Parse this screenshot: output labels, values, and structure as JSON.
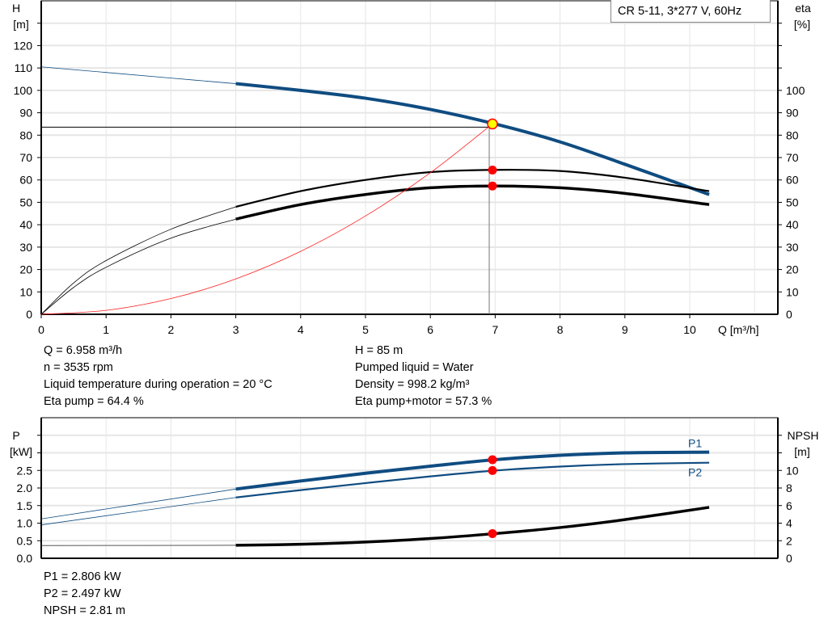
{
  "legend_label": "CR 5-11, 3*277 V, 60Hz",
  "colors": {
    "head": "#0f4c81",
    "eta": "#000000",
    "system": "#ff2020",
    "power": "#0f4c81",
    "npsh": "#000000",
    "marker": "#ff0000",
    "duty_point": "#ffff00",
    "grid": "#e6e6e6"
  },
  "chart_data": [
    {
      "type": "line",
      "xlabel": "Q [m³/h]",
      "ylabel_left": [
        "H",
        "[m]"
      ],
      "ylabel_right": [
        "eta",
        "[%]"
      ],
      "xlim": [
        0,
        11.4
      ],
      "ylim_left": [
        0,
        140
      ],
      "ylim_right": [
        0,
        140
      ],
      "x_ticks": [
        "0",
        "1",
        "2",
        "3",
        "4",
        "5",
        "6",
        "7",
        "8",
        "9",
        "10"
      ],
      "y_ticks_left": [
        "0",
        "10",
        "20",
        "30",
        "40",
        "50",
        "60",
        "70",
        "80",
        "90",
        "100",
        "110",
        "120"
      ],
      "y_ticks_right": [
        "0",
        "10",
        "20",
        "30",
        "40",
        "50",
        "60",
        "70",
        "80",
        "90",
        "100"
      ],
      "grid": true,
      "series": [
        {
          "id": "head",
          "axis": "left",
          "x": [
            0,
            1,
            2,
            3,
            4,
            5,
            6,
            7,
            8,
            9,
            10.3
          ],
          "y": [
            110.5,
            108,
            105.5,
            103,
            100,
            96.5,
            91.5,
            85,
            77,
            67,
            53.5
          ],
          "thick_from": 3
        },
        {
          "id": "eta-pump",
          "axis": "right",
          "x": [
            0,
            0.5,
            1,
            2,
            3,
            4,
            5,
            6,
            7,
            8,
            9,
            10.3
          ],
          "y": [
            0,
            14,
            24,
            38,
            48,
            55,
            60,
            63.5,
            64.5,
            64,
            61,
            55
          ],
          "thick_from": 3
        },
        {
          "id": "eta-total",
          "axis": "right",
          "x": [
            0,
            0.5,
            1,
            2,
            3,
            4,
            5,
            6,
            7,
            8,
            9,
            10.3
          ],
          "y": [
            0,
            12,
            21,
            34,
            42.5,
            49,
            53.5,
            56.5,
            57.3,
            56.5,
            54,
            49
          ],
          "thick_from": 3
        },
        {
          "id": "system-curve",
          "axis": "left",
          "x": [
            0,
            1,
            2,
            3,
            4,
            5,
            6,
            6.958
          ],
          "y": [
            0,
            1.76,
            7.02,
            15.8,
            28.1,
            43.9,
            63.2,
            85
          ]
        }
      ],
      "duty_point": {
        "x": 6.958,
        "y": 85
      },
      "markers": [
        {
          "x": 6.958,
          "y": 64.4,
          "axis": "right"
        },
        {
          "x": 6.958,
          "y": 57.3,
          "axis": "right"
        }
      ]
    },
    {
      "type": "line",
      "ylabel_left": [
        "P",
        "[kW]"
      ],
      "ylabel_right": [
        "NPSH",
        "[m]"
      ],
      "xlim": [
        0,
        11.4
      ],
      "ylim_left": [
        0,
        4
      ],
      "ylim_right": [
        0,
        16
      ],
      "y_ticks_left": [
        "0.0",
        "0.5",
        "1.0",
        "1.5",
        "2.0",
        "2.5"
      ],
      "y_ticks_right": [
        "0",
        "2",
        "4",
        "6",
        "8",
        "10"
      ],
      "grid": true,
      "series": [
        {
          "id": "P1",
          "name": "P1",
          "axis": "left",
          "x": [
            0,
            3,
            4,
            5,
            6,
            7,
            8,
            9,
            10.3
          ],
          "y": [
            1.12,
            1.97,
            2.2,
            2.42,
            2.62,
            2.806,
            2.93,
            3.0,
            3.02
          ],
          "thick_from": 3
        },
        {
          "id": "P2",
          "name": "P2",
          "axis": "left",
          "x": [
            0,
            3,
            4,
            5,
            6,
            7,
            8,
            9,
            10.3
          ],
          "y": [
            0.95,
            1.73,
            1.94,
            2.14,
            2.33,
            2.497,
            2.61,
            2.68,
            2.72
          ],
          "thick_from": 3
        },
        {
          "id": "NPSH",
          "axis": "right",
          "x": [
            0,
            3,
            4,
            5,
            6,
            7,
            8,
            9,
            10.3
          ],
          "y": [
            1.45,
            1.48,
            1.6,
            1.85,
            2.25,
            2.81,
            3.5,
            4.4,
            5.8
          ],
          "thick_from": 3
        }
      ],
      "markers": [
        {
          "x": 6.958,
          "y": 2.806,
          "axis": "left"
        },
        {
          "x": 6.958,
          "y": 2.497,
          "axis": "left"
        },
        {
          "x": 6.958,
          "y": 2.81,
          "axis": "right"
        }
      ]
    }
  ],
  "info_top_left": [
    "Q = 6.958 m³/h",
    "n = 3535 rpm",
    "Liquid temperature during operation = 20 °C",
    "Eta pump = 64.4 %"
  ],
  "info_top_right": [
    "H = 85 m",
    "Pumped liquid = Water",
    "Density = 998.2 kg/m³",
    "Eta pump+motor = 57.3 %"
  ],
  "info_bottom": [
    "P1 = 2.806 kW",
    "P2 = 2.497 kW",
    "NPSH = 2.81 m"
  ]
}
